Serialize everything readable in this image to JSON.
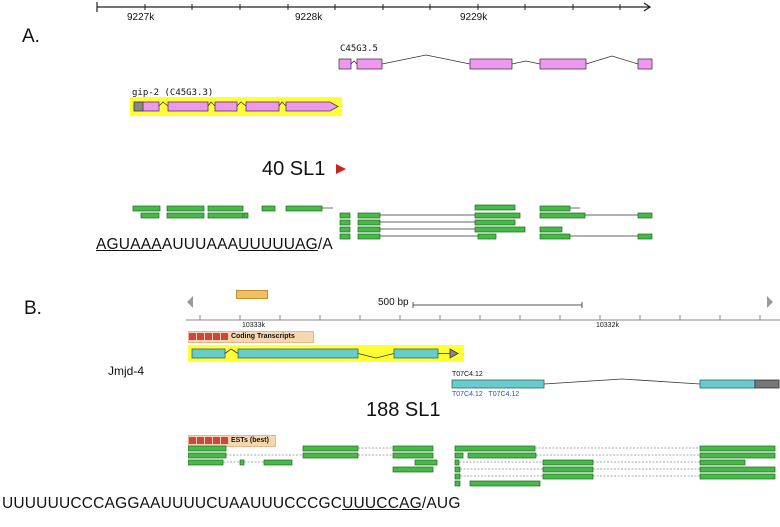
{
  "panel_a": {
    "label": "A.",
    "ruler_ticks": [
      "9227k",
      "9228k",
      "9229k"
    ],
    "gene_top": "C45G3.5",
    "gene_highlight": "gip-2 (C45G3.3)",
    "sl1_label": "40 SL1",
    "sequence": {
      "u1": "AGUAAA",
      "mid": "AUUUAAA",
      "u2": "UUUUUAG",
      "tail": "/A"
    }
  },
  "panel_b": {
    "label": "B.",
    "scale_label": "500 bp",
    "ruler_ticks": [
      "10333k",
      "10332k"
    ],
    "coding_header": "Coding Transcripts",
    "gene_label": "Jmjd-4",
    "transcript_label": "T07C4.12",
    "transcript_sublabels": "T07C4.12   T07C4.12",
    "sl1_label": "188 SL1",
    "est_header": "ESTs (best)",
    "sequence": {
      "pre": "UUUUUUCCCAGGAAUUUUCUAAUUUCCCGC",
      "u": "UUUCCAG",
      "tail": "/AUG"
    }
  },
  "colors": {
    "pink_exon": "#ee99ee",
    "highlight": "#ffff33",
    "green_est": "#44bb44",
    "teal_exon": "#66cccc",
    "arrow_red": "#cc2222",
    "header_tan": "#f6d7b0"
  }
}
